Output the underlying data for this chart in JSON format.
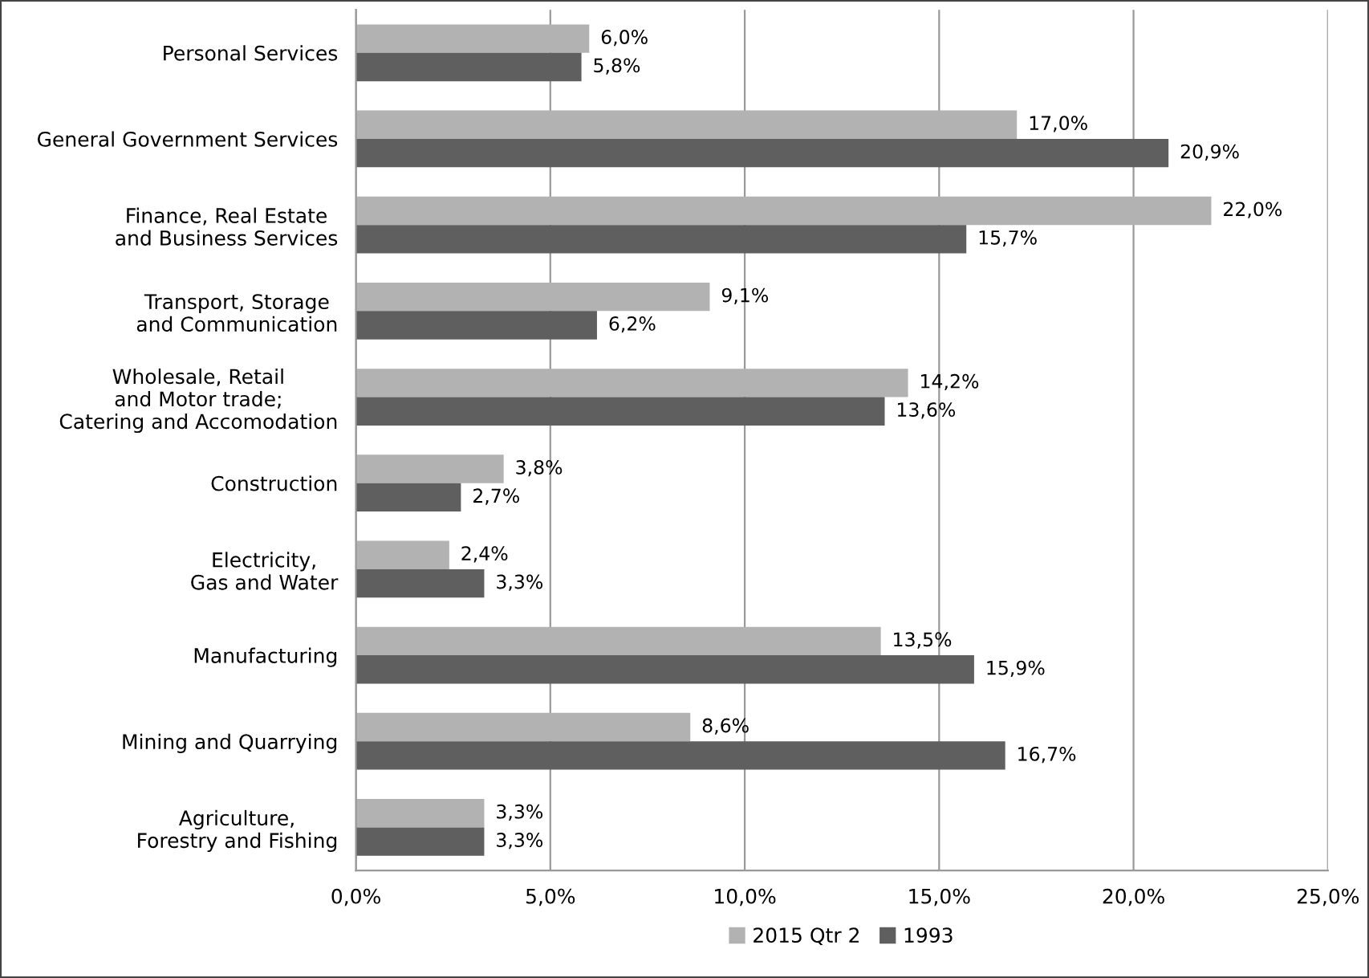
{
  "chart_data": {
    "type": "bar",
    "orientation": "horizontal",
    "categories": [
      "Personal Services",
      "General Government Services",
      "Finance, Real Estate\nand Business Services",
      "Transport, Storage\nand Communication",
      "Wholesale, Retail\nand Motor trade;\nCatering and Accomodation",
      "Construction",
      "Electricity,\nGas and Water",
      "Manufacturing",
      "Mining and Quarrying",
      "Agriculture,\nForestry and Fishing"
    ],
    "series": [
      {
        "name": "2015 Qtr 2",
        "color": "#b2b2b2",
        "values": [
          6.0,
          17.0,
          22.0,
          9.1,
          14.2,
          3.8,
          2.4,
          13.5,
          8.6,
          3.3
        ],
        "value_labels": [
          "6,0%",
          "17,0%",
          "22,0%",
          "9,1%",
          "14,2%",
          "3,8%",
          "2,4%",
          "13,5%",
          "8,6%",
          "3,3%"
        ]
      },
      {
        "name": "1993",
        "color": "#5f5f5f",
        "values": [
          5.8,
          20.9,
          15.7,
          6.2,
          13.6,
          2.7,
          3.3,
          15.9,
          16.7,
          3.3
        ],
        "value_labels": [
          "5,8%",
          "20,9%",
          "15,7%",
          "6,2%",
          "13,6%",
          "2,7%",
          "3,3%",
          "15,9%",
          "16,7%",
          "3,3%"
        ]
      }
    ],
    "xlim": [
      0,
      25
    ],
    "xticks": [
      {
        "value": 0,
        "label": "0,0%"
      },
      {
        "value": 5,
        "label": "5,0%"
      },
      {
        "value": 10,
        "label": "10,0%"
      },
      {
        "value": 15,
        "label": "15,0%"
      },
      {
        "value": 20,
        "label": "20,0%"
      },
      {
        "value": 25,
        "label": "25,0%"
      }
    ],
    "grid": "x",
    "legend": "bottom"
  }
}
